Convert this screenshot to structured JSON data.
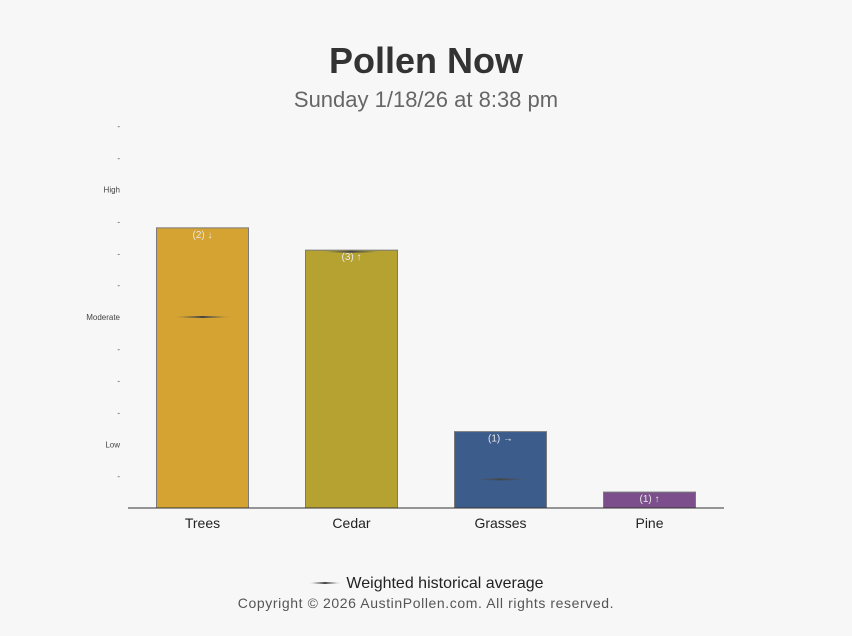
{
  "chart_data": {
    "type": "bar",
    "title": "Pollen Now",
    "subtitle": "Sunday 1/18/26 at 8:38 pm",
    "categories": [
      "Trees",
      "Cedar",
      "Grasses",
      "Pine"
    ],
    "values": [
      8.8,
      8.1,
      2.4,
      0.5
    ],
    "bar_labels": [
      "(2) ↓",
      "(3) ↑",
      "(1) →",
      "(1) ↑"
    ],
    "historical_average": [
      6.0,
      8.05,
      0.9,
      null
    ],
    "bar_colors": [
      "#d4a332",
      "#b5a230",
      "#3c5c8c",
      "#7c4f8c"
    ],
    "ylim": [
      0,
      12
    ],
    "yticks": [
      {
        "value": 1,
        "label": "-"
      },
      {
        "value": 2,
        "label": "Low"
      },
      {
        "value": 3,
        "label": "-"
      },
      {
        "value": 4,
        "label": "-"
      },
      {
        "value": 5,
        "label": "-"
      },
      {
        "value": 6,
        "label": "Moderate"
      },
      {
        "value": 7,
        "label": "-"
      },
      {
        "value": 8,
        "label": "-"
      },
      {
        "value": 9,
        "label": "-"
      },
      {
        "value": 10,
        "label": "High"
      },
      {
        "value": 11,
        "label": "-"
      },
      {
        "value": 12,
        "label": "-"
      }
    ],
    "xlabel": "",
    "ylabel": "",
    "grid": false,
    "legend": {
      "position": "bottom",
      "label": "Weighted historical average"
    }
  },
  "footer": {
    "copyright": "Copyright © 2026 AustinPollen.com.  All rights reserved."
  }
}
